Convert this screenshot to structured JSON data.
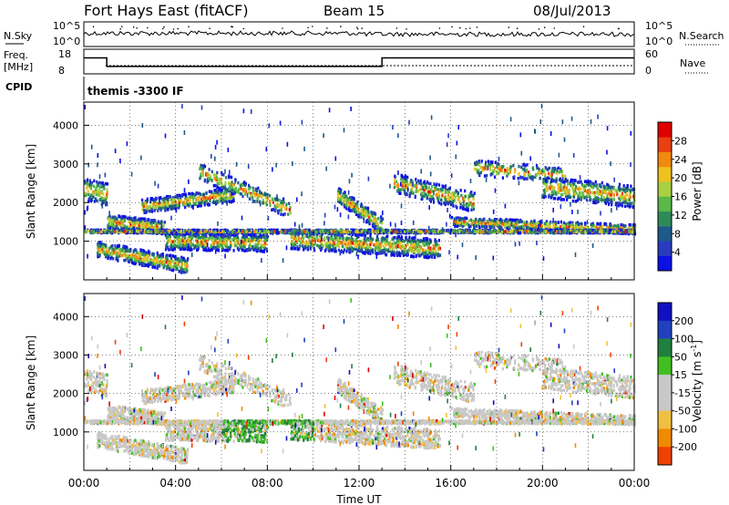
{
  "header": {
    "title": "Fort Hays East (fitACF)",
    "beam": "Beam 15",
    "date": "08/Jul/2013"
  },
  "colors": {
    "power_scale": [
      "#0a10e6",
      "#2a3bc0",
      "#1d5a8a",
      "#2f8a5a",
      "#58b848",
      "#a8d040",
      "#f0c020",
      "#f08a10",
      "#e84010",
      "#e00000"
    ],
    "velocity_scale": [
      "#e00000",
      "#f04000",
      "#f08a00",
      "#f0c040",
      "#c8c8c8",
      "#c8c8c8",
      "#40c020",
      "#208040",
      "#2040c0",
      "#1010c0"
    ]
  },
  "chart_data": [
    {
      "type": "line",
      "name": "sky-search-panel",
      "left_label": "N.Sky",
      "right_label": "N.Search",
      "left_ticks": [
        "10^5",
        "10^0"
      ],
      "right_ticks": [
        "10^5",
        "10^0"
      ]
    },
    {
      "type": "line",
      "name": "freq-nave-panel",
      "left_label_line1": "Freq.",
      "left_label_line2": "[MHz]",
      "right_label": "Nave",
      "left_ticks": [
        18,
        8
      ],
      "right_ticks": [
        60,
        0
      ],
      "freq_segments": [
        {
          "x": [
            0.0,
            1.0
          ],
          "y": 14.5
        },
        {
          "x": [
            1.0,
            13.0
          ],
          "y": 11.0
        },
        {
          "x": [
            13.0,
            24.0
          ],
          "y": 14.5
        }
      ]
    },
    {
      "type": "text",
      "name": "cpid-panel",
      "label": "CPID",
      "value": "themis -3300 IF"
    },
    {
      "type": "heatmap",
      "name": "power-panel",
      "ylabel": "Slant Range [km]",
      "yticks": [
        1000,
        2000,
        3000,
        4000
      ],
      "ylim": [
        0,
        4600
      ],
      "xlim": [
        0,
        24
      ],
      "colorbar_label": "Power [dB]",
      "colorbar_ticks": [
        4,
        8,
        12,
        16,
        20,
        24,
        28
      ],
      "colorbar_range": [
        0,
        32
      ]
    },
    {
      "type": "heatmap",
      "name": "velocity-panel",
      "ylabel": "Slant Range [km]",
      "yticks": [
        1000,
        2000,
        3000,
        4000
      ],
      "ylim": [
        0,
        4600
      ],
      "xlim": [
        0,
        24
      ],
      "xlabel": "Time UT",
      "xtick_labels": [
        "00:00",
        "04:00",
        "08:00",
        "12:00",
        "16:00",
        "20:00",
        "00:00"
      ],
      "colorbar_label": "Velocity [m s",
      "colorbar_label_exp": "-1",
      "colorbar_label_end": "]",
      "colorbar_ticks": [
        200,
        100,
        50,
        15,
        -15,
        -50,
        -100,
        -200
      ]
    }
  ]
}
